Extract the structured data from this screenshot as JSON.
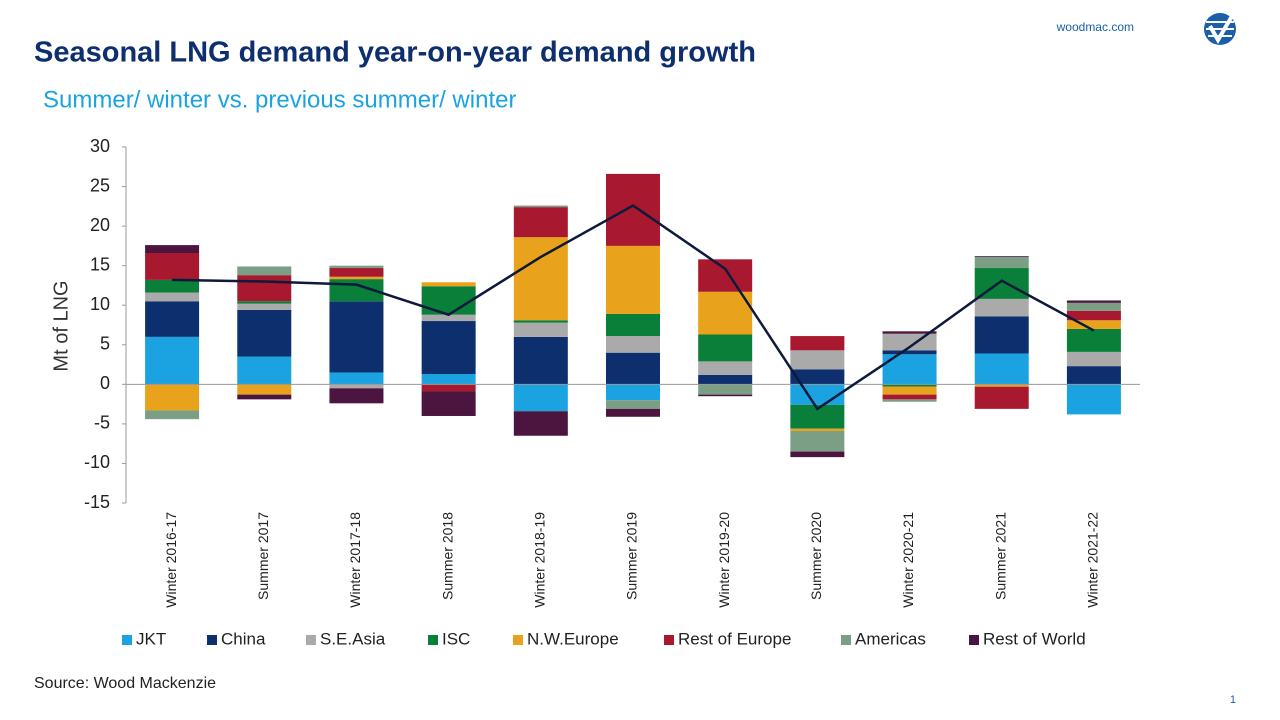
{
  "header": {
    "site": "woodmac.com"
  },
  "chart_data": {
    "type": "stacked-bar",
    "title": "Seasonal LNG demand year-on-year demand growth",
    "subtitle": "Summer/ winter vs. previous summer/ winter",
    "y_label": "Mt of LNG",
    "categories": [
      "Winter 2016-17",
      "Summer 2017",
      "Winter 2017-18",
      "Summer 2018",
      "Winter 2018-19",
      "Summer 2019",
      "Winter 2019-20",
      "Summer 2020",
      "Winter 2020-21",
      "Summer 2021",
      "Winter 2021-22"
    ],
    "series": [
      {
        "name": "JKT",
        "color": "#1aa3e0",
        "values": [
          6,
          3.5,
          1.5,
          1.3,
          -3.4,
          -2,
          0,
          -2.6,
          3.8,
          3.9,
          -3.8
        ]
      },
      {
        "name": "China",
        "color": "#0d2f6e",
        "values": [
          4.5,
          5.9,
          9,
          6.7,
          6,
          4,
          1.2,
          1.9,
          0.5,
          4.7,
          2.3
        ]
      },
      {
        "name": "S.E.Asia",
        "color": "#aaaaaa",
        "values": [
          1.1,
          0.8,
          -0.5,
          0.8,
          1.8,
          2.1,
          1.7,
          2.4,
          2.1,
          2.2,
          1.8
        ]
      },
      {
        "name": "ISC",
        "color": "#0a7f3a",
        "values": [
          1.6,
          0.3,
          2.8,
          3.6,
          0.3,
          2.8,
          3.4,
          -3.0,
          -0.3,
          3.9,
          2.9
        ]
      },
      {
        "name": "N.W.Europe",
        "color": "#e8a21b",
        "values": [
          -3.3,
          -1.3,
          0.3,
          0.5,
          10.5,
          8.6,
          5.4,
          -0.3,
          -1.0,
          -0.3,
          1.1
        ]
      },
      {
        "name": "Rest of Europe",
        "color": "#a8182f",
        "values": [
          3.4,
          3.3,
          1.1,
          -0.9,
          3.8,
          9.1,
          4.1,
          1.8,
          -0.6,
          -2.8,
          1.2
        ]
      },
      {
        "name": "Americas",
        "color": "#7a9f85",
        "values": [
          -1.1,
          1.1,
          0.3,
          0,
          0.2,
          -1.1,
          -1.3,
          -2.6,
          -0.3,
          1.4,
          1.0
        ]
      },
      {
        "name": "Rest of World",
        "color": "#4b1540",
        "values": [
          1.0,
          -0.6,
          -1.9,
          -3.1,
          -3.1,
          -1.0,
          -0.2,
          -0.7,
          0.3,
          0.1,
          0.3
        ]
      }
    ],
    "line": {
      "color": "#0d1a3c",
      "values": [
        13.2,
        13.0,
        12.6,
        8.8,
        16.1,
        22.6,
        14.6,
        -3.1,
        4.7,
        13.1,
        6.8
      ]
    },
    "ylim": [
      -15,
      30
    ],
    "yticks": [
      -15,
      -10,
      -5,
      0,
      5,
      10,
      15,
      20,
      25,
      30
    ],
    "legend": "bottom",
    "source": "Source: Wood Mackenzie"
  },
  "footer": {
    "page": "1"
  }
}
